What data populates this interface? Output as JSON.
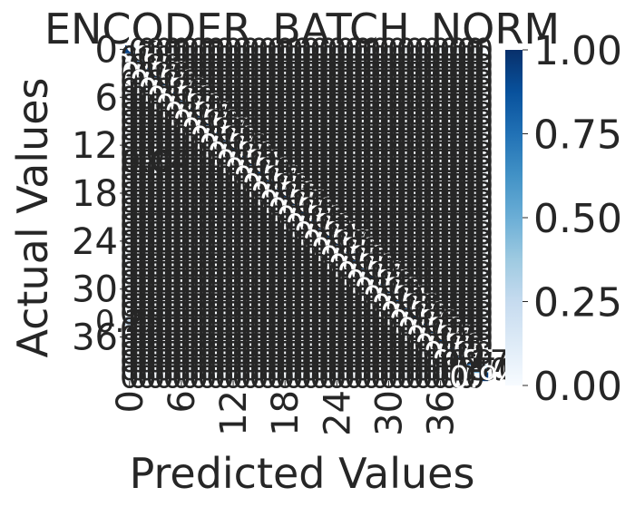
{
  "chart_data": {
    "type": "heatmap",
    "title": "ENCODER_BATCH_NORM",
    "xlabel": "Predicted Values",
    "ylabel": "Actual Values",
    "n_classes": 42,
    "x_tick_labels": [
      "0",
      "6",
      "12",
      "18",
      "24",
      "30",
      "36"
    ],
    "x_tick_indices": [
      0,
      6,
      12,
      18,
      24,
      30,
      36
    ],
    "y_tick_labels": [
      "0",
      "6",
      "12",
      "18",
      "24",
      "30",
      "36"
    ],
    "y_tick_indices": [
      0,
      6,
      12,
      18,
      24,
      30,
      36
    ],
    "colorbar": {
      "colormap": "Blues",
      "vmin": 0.0,
      "vmax": 1.0,
      "tick_labels": [
        "0.00",
        "0.25",
        "0.50",
        "0.75",
        "1.00"
      ],
      "tick_values": [
        0.0,
        0.25,
        0.5,
        0.75,
        1.0
      ]
    },
    "diagonal_values": [
      0.93,
      0.91,
      0.88,
      0.95,
      0.9,
      0.86,
      0.92,
      0.89,
      0.94,
      0.9,
      0.87,
      0.93,
      0.96,
      0.88,
      0.91,
      0.9,
      0.94,
      0.89,
      0.92,
      0.95,
      0.9,
      0.88,
      0.93,
      0.91,
      0.97,
      0.89,
      0.92,
      0.9,
      0.94,
      0.88,
      0.93,
      0.91,
      0.95,
      0.9,
      0.86,
      0.92,
      0.94,
      0.89,
      0.91,
      0.87,
      0.5,
      0.94
    ],
    "off_diagonal_cells": [
      {
        "row": 34,
        "col": 0,
        "value": 0.25
      },
      {
        "row": 39,
        "col": 40,
        "value": 0.17
      },
      {
        "row": 40,
        "col": 41,
        "value": 0.5
      },
      {
        "row": 14,
        "col": 3,
        "value": 0.04
      }
    ],
    "visible_fragments": [
      "0.7",
      "0.94",
      "9",
      "4",
      "6",
      "0."
    ]
  }
}
